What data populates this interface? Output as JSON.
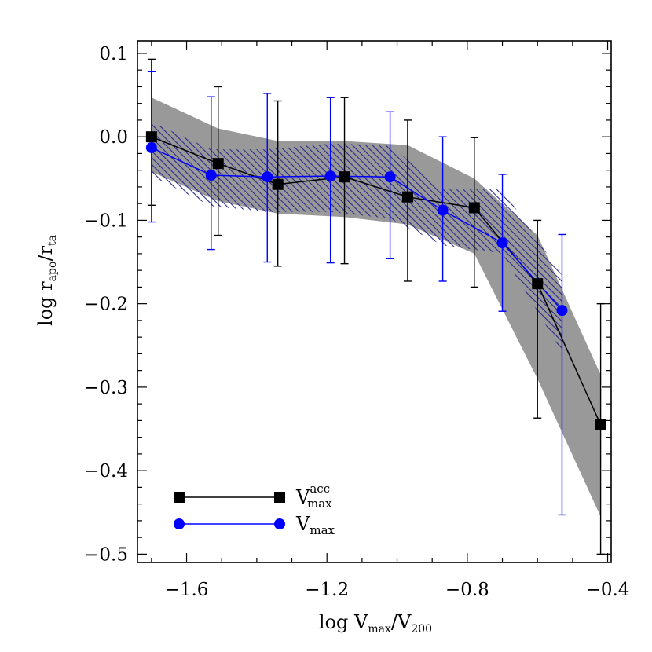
{
  "chart_data": {
    "type": "line",
    "title": "",
    "xlabel": {
      "prefix": "log  V",
      "sub1": "max",
      "mid": "/V",
      "sub2": "200"
    },
    "ylabel": {
      "prefix": "log  r",
      "sub1": "apo",
      "mid": "/r",
      "sub2": "ta"
    },
    "xlim": [
      -1.74,
      -0.39
    ],
    "ylim": [
      -0.51,
      0.115
    ],
    "x_ticks": [
      -1.6,
      -1.2,
      -0.8,
      -0.4
    ],
    "x_tick_labels": [
      "−1.6",
      "−1.2",
      "−0.8",
      "−0.4"
    ],
    "y_ticks": [
      0.1,
      0.0,
      -0.1,
      -0.2,
      -0.3,
      -0.4,
      -0.5
    ],
    "y_tick_labels": [
      "0.1",
      "0.0",
      "−0.1",
      "−0.2",
      "−0.3",
      "−0.4",
      "−0.5"
    ],
    "grid": false,
    "legend_position": "bottom-left",
    "series": [
      {
        "name": {
          "base": "V",
          "sup": "acc",
          "sub": "max"
        },
        "color": "#000000",
        "marker": "square",
        "x": [
          -1.7,
          -1.51,
          -1.34,
          -1.15,
          -0.97,
          -0.78,
          -0.6,
          -0.42
        ],
        "y": [
          0.0,
          -0.032,
          -0.057,
          -0.048,
          -0.072,
          -0.085,
          -0.176,
          -0.345
        ],
        "err_low": [
          -0.082,
          -0.118,
          -0.155,
          -0.152,
          -0.173,
          -0.18,
          -0.337,
          -0.5
        ],
        "err_high": [
          0.093,
          0.06,
          0.043,
          0.047,
          0.02,
          -0.001,
          -0.1,
          -0.2
        ],
        "band": {
          "color": "#999999",
          "x": [
            -1.7,
            -1.51,
            -1.34,
            -1.15,
            -0.97,
            -0.78,
            -0.6,
            -0.42
          ],
          "low": [
            -0.042,
            -0.077,
            -0.092,
            -0.096,
            -0.105,
            -0.14,
            -0.29,
            -0.455
          ],
          "high": [
            0.047,
            0.01,
            -0.005,
            -0.005,
            -0.01,
            -0.05,
            -0.118,
            -0.285
          ]
        }
      },
      {
        "name": {
          "base": "V",
          "sup": "",
          "sub": "max"
        },
        "color": "#0000ff",
        "marker": "circle",
        "x": [
          -1.7,
          -1.53,
          -1.37,
          -1.19,
          -1.02,
          -0.87,
          -0.7,
          -0.53
        ],
        "y": [
          -0.013,
          -0.046,
          -0.048,
          -0.047,
          -0.048,
          -0.088,
          -0.127,
          -0.208
        ],
        "err_low": [
          -0.102,
          -0.135,
          -0.15,
          -0.151,
          -0.146,
          -0.173,
          -0.209,
          -0.453
        ],
        "err_high": [
          0.078,
          0.048,
          0.052,
          0.047,
          0.03,
          0.0,
          -0.045,
          -0.117
        ],
        "band": {
          "color": "#2a2a8c",
          "x": [
            -1.7,
            -1.53,
            -1.37,
            -1.19,
            -1.02,
            -0.87,
            -0.7,
            -0.53
          ],
          "low": [
            -0.047,
            -0.083,
            -0.09,
            -0.09,
            -0.098,
            -0.13,
            -0.14,
            -0.258
          ],
          "high": [
            0.018,
            -0.015,
            -0.015,
            -0.008,
            -0.01,
            -0.063,
            -0.063,
            -0.166
          ]
        }
      }
    ]
  }
}
